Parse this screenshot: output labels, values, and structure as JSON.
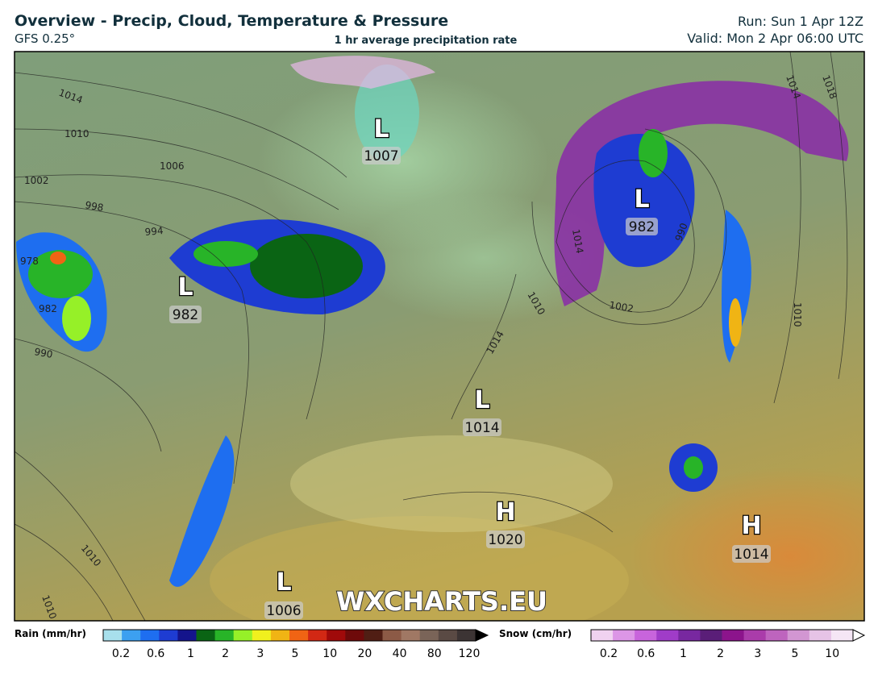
{
  "header": {
    "title": "Overview - Precip, Cloud, Temperature & Pressure",
    "model": "GFS 0.25°",
    "subtitle": "1 hr average precipitation rate",
    "run": "Run: Sun 1 Apr 12Z",
    "valid": "Valid: Mon 2 Apr 06:00 UTC"
  },
  "map": {
    "pressure_centers": [
      {
        "kind": "L",
        "value": "1007"
      },
      {
        "kind": "L",
        "value": "982"
      },
      {
        "kind": "L",
        "value": "982"
      },
      {
        "kind": "L",
        "value": "1014"
      },
      {
        "kind": "H",
        "value": "1020"
      },
      {
        "kind": "H",
        "value": "1014"
      },
      {
        "kind": "L",
        "value": "1006"
      }
    ],
    "isobar_labels": [
      "1014",
      "1010",
      "1006",
      "1002",
      "998",
      "994",
      "978",
      "982",
      "990",
      "1010",
      "1014",
      "1018",
      "1014",
      "1010",
      "1002",
      "990",
      "1010",
      "1010",
      "1014"
    ],
    "watermark": "WXCHARTS.EU"
  },
  "legend": {
    "rain": {
      "title": "Rain (mm/hr)",
      "ticks": [
        "0.2",
        "0.6",
        "1",
        "2",
        "3",
        "5",
        "10",
        "20",
        "40",
        "80",
        "120"
      ],
      "colors": [
        "#a8e0ec",
        "#3ca0f0",
        "#1e6ef0",
        "#1e3cd2",
        "#14148c",
        "#0a6414",
        "#28b428",
        "#96f028",
        "#f0f01e",
        "#f0b414",
        "#f06414",
        "#d22814",
        "#a00a0a",
        "#6e0a0a",
        "#501e14",
        "#8c5a46",
        "#a07864",
        "#7a6458",
        "#5a4a44",
        "#3c3434"
      ]
    },
    "snow": {
      "title": "Snow (cm/hr)",
      "ticks": [
        "0.2",
        "0.6",
        "1",
        "2",
        "3",
        "5",
        "10"
      ],
      "colors": [
        "#f0d2f0",
        "#dc96e6",
        "#c864dc",
        "#a03cc8",
        "#7828a0",
        "#5a1e78",
        "#8c148c",
        "#aa3caa",
        "#be64be",
        "#d296d2",
        "#e6c3e6",
        "#f5e6f5"
      ]
    }
  }
}
